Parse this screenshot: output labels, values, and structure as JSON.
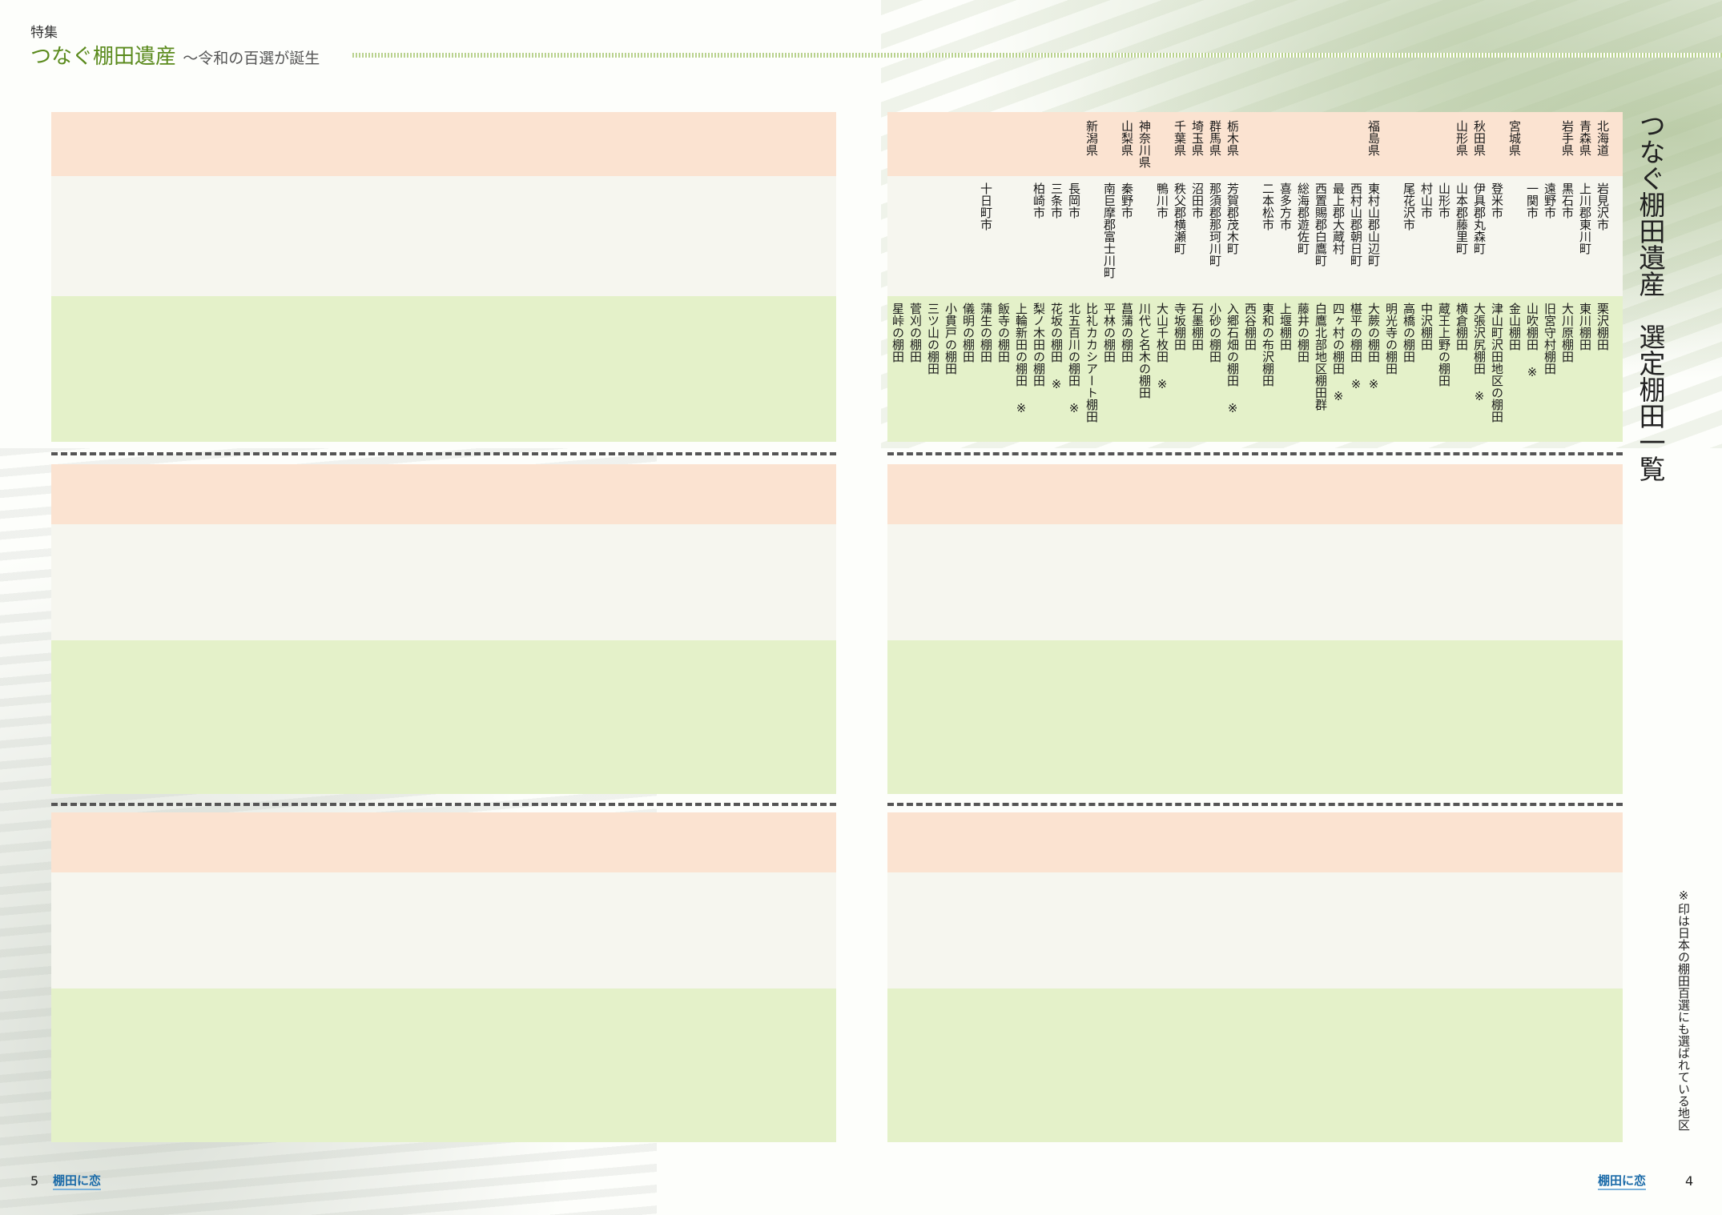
{
  "header": {
    "label": "特集",
    "title": "つなぐ棚田遺産",
    "subtitle": "～令和の百選が誕生"
  },
  "title_vertical": "つなぐ棚田遺産　選定棚田一覧",
  "note": "※印は日本の棚田百選にも選ばれている地区",
  "footer": {
    "page_left": "5",
    "page_right": "4",
    "logo_left": "棚田に恋",
    "logo_right": "棚田に恋"
  },
  "columns": [
    [
      "北海道",
      "岩見沢市",
      "栗沢棚田"
    ],
    [
      "青森県",
      "上川郡東川町",
      "東川棚田"
    ],
    [
      "岩手県",
      "黒石市",
      "大川原棚田"
    ],
    [
      "",
      "遠野市",
      "旧宮守村棚田"
    ],
    [
      "",
      "一関市",
      "山吹棚田 ※"
    ],
    [
      "宮城県",
      "",
      "金山棚田"
    ],
    [
      "",
      "登米市",
      "津山町沢田地区の棚田"
    ],
    [
      "秋田県",
      "伊具郡丸森町",
      "大張沢尻棚田 ※"
    ],
    [
      "山形県",
      "山本郡藤里町",
      "横倉棚田"
    ],
    [
      "",
      "山形市",
      "蔵王上野の棚田"
    ],
    [
      "",
      "村山市",
      "中沢棚田"
    ],
    [
      "",
      "尾花沢市",
      "高橋の棚田"
    ],
    [
      "",
      "",
      "明光寺の棚田"
    ],
    [
      "福島県",
      "東村山郡山辺町",
      "大蕨の棚田 ※"
    ],
    [
      "",
      "西村山郡朝日町",
      "椹平の棚田 ※"
    ],
    [
      "",
      "最上郡大蔵村",
      "四ヶ村の棚田 ※"
    ],
    [
      "",
      "西置賜郡白鷹町",
      "白鷹北部地区棚田群"
    ],
    [
      "",
      "総海郡遊佐町",
      "藤井の棚田"
    ],
    [
      "",
      "喜多方市",
      "上堰棚田"
    ],
    [
      "",
      "二本松市",
      "東和の布沢棚田"
    ],
    [
      "",
      "",
      "西谷棚田"
    ],
    [
      "栃木県",
      "芳賀郡茂木町",
      "入郷石畑の棚田 ※"
    ],
    [
      "群馬県",
      "那須郡那珂川町",
      "小砂の棚田"
    ],
    [
      "埼玉県",
      "沼田市",
      "石墨棚田"
    ],
    [
      "千葉県",
      "秩父郡横瀬町",
      "寺坂棚田"
    ],
    [
      "",
      "鴨川市",
      "大山千枚田 ※"
    ],
    [
      "神奈川県",
      "",
      "川代と名木の棚田"
    ],
    [
      "山梨県",
      "秦野市",
      "菖蒲の棚田"
    ],
    [
      "",
      "南巨摩郡富士川町",
      "平林の棚田"
    ],
    [
      "新潟県",
      "",
      "比礼カカシアート棚田"
    ],
    [
      "",
      "長岡市",
      "北五百川の棚田 ※"
    ],
    [
      "",
      "三条市",
      "花坂の棚田 ※"
    ],
    [
      "",
      "柏崎市",
      "梨ノ木田の棚田"
    ],
    [
      "",
      "",
      "上輪新田の棚田 ※"
    ],
    [
      "",
      "",
      "飯寺の棚田"
    ],
    [
      "",
      "十日町市",
      "蒲生の棚田"
    ],
    [
      "",
      "",
      "儀明の棚田"
    ],
    [
      "",
      "",
      "小貫戸の棚田"
    ],
    [
      "",
      "",
      "三ツ山の棚田"
    ],
    [
      "",
      "",
      "菅刈の棚田"
    ],
    [
      "",
      "",
      "星峠の棚田"
    ]
  ]
}
